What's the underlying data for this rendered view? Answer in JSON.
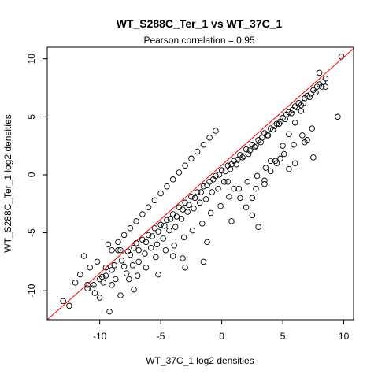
{
  "chart_data": {
    "type": "scatter",
    "title": "WT_S288C_Ter_1 vs WT_37C_1",
    "subtitle": "Pearson correlation =  0.95",
    "xlabel": "WT_37C_1 log2 densities",
    "ylabel": "WT_S288C_Ter_1 log2 densities",
    "xlim": [
      -14.3,
      10.8
    ],
    "ylim": [
      -12.5,
      11.0
    ],
    "x_ticks": [
      -10,
      -5,
      0,
      5,
      10
    ],
    "y_ticks": [
      -10,
      -5,
      0,
      5,
      10
    ],
    "grid": false,
    "legend": "none",
    "colors": {
      "points": "#000000",
      "fit_line": "#ff0000"
    },
    "fit_line": {
      "x": [
        -14.3,
        10.8
      ],
      "y": [
        -12.6,
        10.9
      ]
    },
    "points": {
      "x": [
        -13.0,
        -12.5,
        -11.6,
        -11.3,
        -11.0,
        -10.8,
        -10.6,
        -10.4,
        -10.2,
        -10.0,
        -9.7,
        -9.5,
        -9.3,
        -9.0,
        -8.8,
        -8.5,
        -8.2,
        -8.0,
        -7.7,
        -7.5,
        -7.2,
        -7.0,
        -6.8,
        -6.5,
        -6.2,
        -6.0,
        -5.7,
        -5.5,
        -5.2,
        -5.0,
        -4.7,
        -4.5,
        -4.2,
        -4.0,
        -3.7,
        -3.5,
        -3.2,
        -3.0,
        -2.7,
        -2.5,
        -2.2,
        -2.0,
        -1.7,
        -1.5,
        -1.2,
        -1.0,
        -0.7,
        -0.5,
        -0.2,
        0.0,
        0.3,
        0.5,
        0.8,
        1.0,
        1.3,
        1.5,
        1.8,
        2.0,
        2.3,
        2.5,
        2.8,
        3.0,
        3.3,
        3.5,
        3.8,
        4.0,
        4.3,
        4.5,
        4.8,
        5.0,
        5.3,
        5.5,
        5.8,
        6.0,
        6.3,
        6.5,
        6.8,
        7.0,
        7.3,
        7.5,
        7.8,
        8.0,
        8.3,
        8.5,
        9.5,
        9.8,
        -9.0,
        -8.5,
        -8.0,
        -7.5,
        -7.0,
        -6.5,
        -6.0,
        -5.5,
        -5.0,
        -4.5,
        -4.0,
        -3.5,
        -3.0,
        -2.5,
        -2.0,
        -1.5,
        -1.0,
        -0.5,
        0.5,
        1.0,
        1.5,
        2.0,
        2.5,
        3.0,
        3.5,
        4.0,
        4.5,
        5.0,
        5.5,
        6.0,
        6.5,
        7.0,
        7.5,
        -10.5,
        -9.5,
        -8.7,
        -8.3,
        -7.8,
        -7.3,
        -6.8,
        -6.3,
        -5.8,
        -5.3,
        -4.8,
        -4.3,
        -3.8,
        -3.3,
        -2.8,
        -2.3,
        -1.8,
        -1.3,
        -0.8,
        -0.3,
        0.2,
        0.7,
        1.2,
        1.7,
        2.2,
        2.7,
        3.2,
        3.7,
        4.2,
        4.7,
        5.2,
        5.7,
        6.2,
        6.7,
        7.2,
        7.7,
        8.2,
        -11.0,
        -10.0,
        -9.2,
        -7.2,
        -5.2,
        -3.2,
        -1.2,
        0.8,
        2.8,
        4.8,
        6.8,
        8.0,
        -9.8,
        -9.0,
        -8.3,
        -7.6,
        -6.9,
        -6.2,
        -5.4,
        -4.6,
        -3.9,
        -3.1,
        -2.4,
        -1.6,
        -0.9,
        -0.1,
        0.6,
        1.4,
        2.1,
        2.9,
        3.6,
        4.4,
        5.1,
        5.9,
        6.6,
        7.4,
        -12.0,
        8.5,
        6.0,
        5.5,
        4.0,
        3.5,
        2.5,
        -4.0,
        -3.0,
        -1.5
      ],
      "y": [
        -10.9,
        -11.3,
        -8.6,
        -7.0,
        -9.5,
        -8.0,
        -9.8,
        -10.2,
        -7.5,
        -9.0,
        -9.3,
        -8.7,
        -6.0,
        -8.2,
        -7.8,
        -6.5,
        -7.4,
        -7.9,
        -6.6,
        -6.9,
        -6.3,
        -5.9,
        -6.5,
        -5.6,
        -5.8,
        -5.2,
        -5.3,
        -4.6,
        -4.9,
        -4.3,
        -4.4,
        -3.9,
        -3.8,
        -3.4,
        -3.6,
        -2.8,
        -3.0,
        -2.4,
        -2.6,
        -1.9,
        -2.0,
        -1.5,
        -1.5,
        -1.0,
        -0.9,
        -0.6,
        -0.4,
        -0.1,
        0.0,
        0.4,
        0.3,
        0.8,
        0.9,
        1.2,
        1.3,
        1.7,
        1.6,
        2.2,
        2.1,
        2.6,
        2.5,
        3.0,
        3.2,
        3.6,
        3.4,
        4.0,
        4.2,
        4.4,
        4.6,
        4.9,
        5.2,
        5.4,
        5.6,
        5.9,
        6.2,
        6.0,
        6.6,
        6.8,
        7.0,
        7.3,
        7.6,
        7.8,
        8.0,
        8.3,
        5.0,
        10.2,
        -6.5,
        -5.8,
        -5.2,
        -4.6,
        -4.0,
        -3.4,
        -2.8,
        -2.2,
        -1.6,
        -1.0,
        -0.4,
        0.2,
        0.8,
        1.4,
        2.0,
        2.6,
        3.2,
        3.8,
        -0.6,
        -1.2,
        -2.0,
        -2.8,
        -3.5,
        -4.5,
        -0.8,
        0.3,
        1.0,
        2.5,
        3.5,
        4.5,
        5.5,
        3.0,
        1.5,
        -9.5,
        -8.0,
        -9.0,
        -6.5,
        -8.5,
        -7.8,
        -7.5,
        -6.8,
        -6.3,
        -6.0,
        -5.5,
        -4.8,
        -4.5,
        -3.8,
        -3.2,
        -2.9,
        -2.4,
        -2.1,
        -1.5,
        -1.2,
        -0.6,
        0.5,
        0.9,
        1.5,
        1.8,
        2.4,
        2.8,
        3.4,
        3.9,
        4.4,
        4.8,
        5.3,
        5.8,
        6.2,
        6.7,
        7.1,
        7.6,
        -9.8,
        -10.6,
        -11.8,
        -9.9,
        -8.6,
        -7.2,
        -5.8,
        -4.0,
        -1.2,
        1.4,
        2.8,
        8.8,
        -8.8,
        -9.5,
        -10.4,
        -9.0,
        -8.7,
        -8.0,
        -7.1,
        -6.5,
        -6.1,
        -5.4,
        -4.8,
        -4.2,
        -3.3,
        -2.7,
        -1.9,
        -1.2,
        -0.6,
        -0.1,
        0.6,
        1.2,
        1.8,
        2.6,
        3.4,
        4.0,
        -9.3,
        7.6,
        1.0,
        0.5,
        1.2,
        -0.5,
        -2.0,
        -7.0,
        -8.0,
        -7.5
      ]
    }
  }
}
